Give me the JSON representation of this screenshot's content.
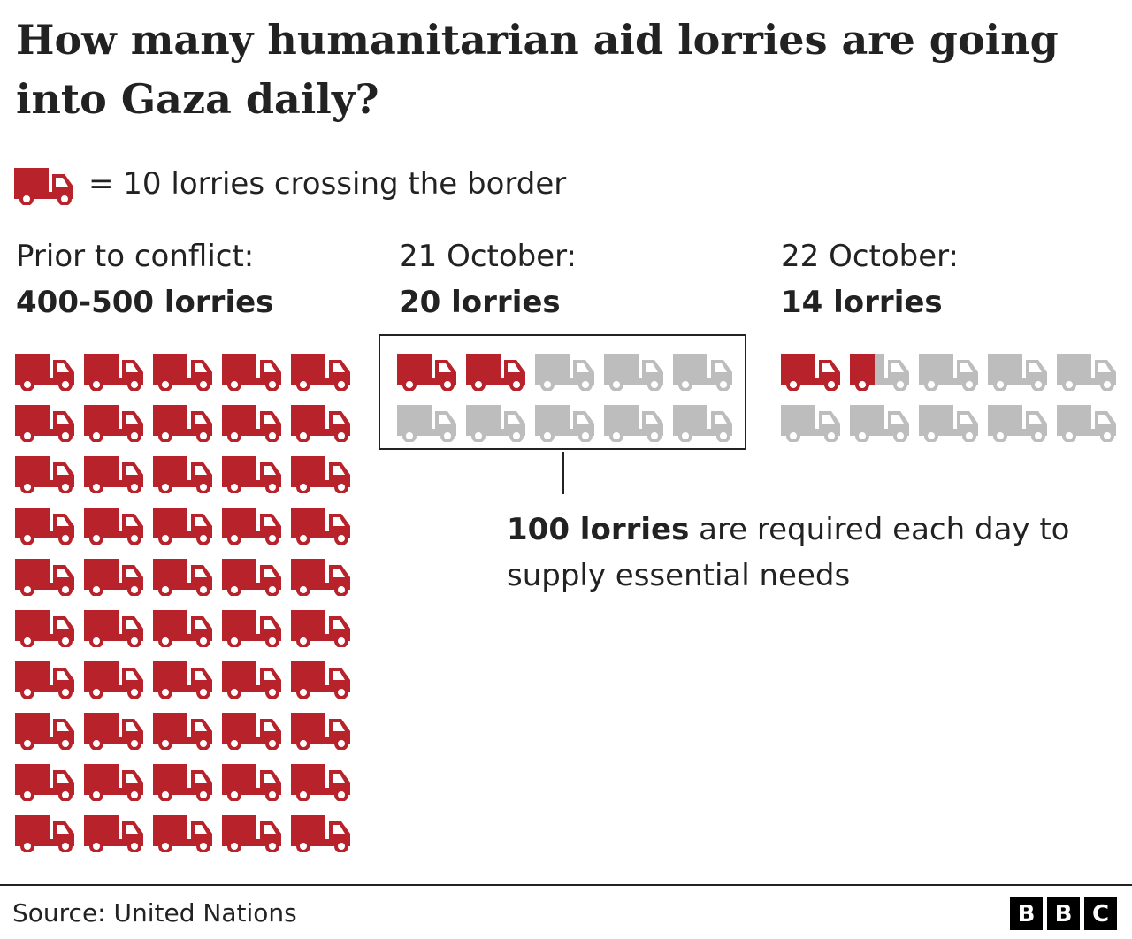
{
  "title": "How many humanitarian aid lorries are going into Gaza daily?",
  "legend": {
    "text": "= 10 lorries crossing the border",
    "icon": "lorry-icon"
  },
  "colors": {
    "filled": "#b8232b",
    "empty": "#bdbdbd",
    "text": "#222222"
  },
  "chart_data": {
    "type": "pictogram",
    "unit_per_icon": 10,
    "panels": [
      {
        "label": "Prior to conflict:",
        "count_label": "400-500 lorries",
        "lorries": 500
      },
      {
        "label": "21 October:",
        "count_label": "20 lorries",
        "lorries": 20,
        "required": 100
      },
      {
        "label": "22 October:",
        "count_label": "14 lorries",
        "lorries": 14,
        "required": 100
      }
    ]
  },
  "annotation": {
    "bold": "100 lorries",
    "rest": " are required each day to supply essential needs"
  },
  "source": "Source: United Nations",
  "logo": [
    "B",
    "B",
    "C"
  ]
}
